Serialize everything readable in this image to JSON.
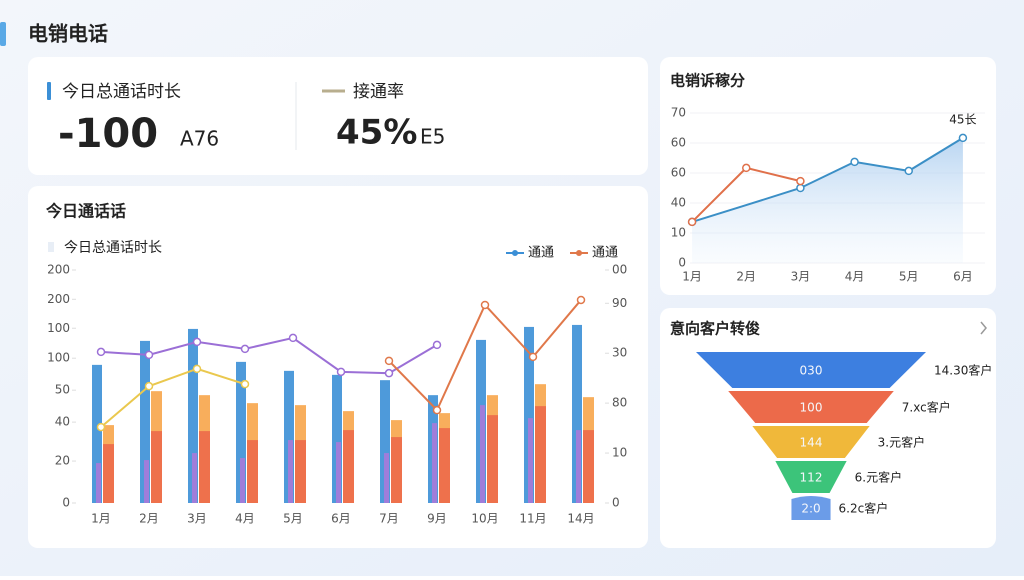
{
  "header": {
    "title": "电销电话"
  },
  "kpis": [
    {
      "label": "今日总通话时长",
      "value": "-100",
      "unit": "A76"
    },
    {
      "label": "接通率",
      "value": "45%",
      "unit": "E5"
    }
  ],
  "chart_data": [
    {
      "type": "bar",
      "title": "今日通话话",
      "subtitle": "今日总通话时长",
      "categories": [
        "1月",
        "2月",
        "3月",
        "4月",
        "5月",
        "6月",
        "7月",
        "9月",
        "10月",
        "11月",
        "14月"
      ],
      "series": [
        {
          "name": "通通",
          "color": "#3b8fd6",
          "values": [
            4.15,
            4.87,
            5.23,
            4.24,
            3.97,
            3.85,
            3.69,
            3.24,
            4.9,
            5.29,
            5.35
          ]
        },
        {
          "color": "#f7a54a",
          "values": [
            2.34,
            3.36,
            3.24,
            3.0,
            2.94,
            2.76,
            2.49,
            2.7,
            3.24,
            3.57,
            3.18
          ]
        },
        {
          "color": "#ec6a4a",
          "values": [
            1.77,
            2.16,
            2.16,
            1.89,
            1.89,
            2.19,
            1.98,
            2.25,
            2.64,
            2.91,
            2.19
          ]
        },
        {
          "color": "#a97ad9",
          "values": [
            1.2,
            1.29,
            1.5,
            1.35,
            1.89,
            1.83,
            1.5,
            2.4,
            2.94,
            2.55,
            2.19
          ]
        },
        {
          "type": "line",
          "color": "#9b6fd6",
          "values": [
            4.54,
            4.45,
            4.84,
            4.63,
            4.96,
            3.94,
            3.9,
            4.75,
            null,
            null,
            null
          ]
        },
        {
          "type": "line",
          "color": "#eac84e",
          "values": [
            2.28,
            3.51,
            4.03,
            3.57,
            null,
            null,
            null,
            null,
            null,
            null,
            null
          ]
        },
        {
          "type": "line",
          "name": "通通",
          "color": "#e0784a",
          "values": [
            null,
            null,
            null,
            null,
            null,
            null,
            4.27,
            2.79,
            5.95,
            4.39,
            6.1
          ]
        }
      ],
      "ylim": [
        0,
        7
      ],
      "yticks": [
        0,
        {
          "value": 1.26,
          "label": "20"
        },
        {
          "value": 2.43,
          "label": "40"
        },
        {
          "value": 3.39,
          "label": "50"
        },
        {
          "value": 4.35,
          "label": "100"
        },
        {
          "value": 5.25,
          "label": "100"
        },
        {
          "value": 6.12,
          "label": "200"
        },
        {
          "value": 7,
          "label": "200"
        }
      ],
      "y2lim": [
        0,
        7
      ],
      "y2ticks": [
        0,
        {
          "value": 1.5,
          "label": "10"
        },
        {
          "value": 3,
          "label": "80"
        },
        {
          "value": 4.5,
          "label": "30"
        },
        {
          "value": 6,
          "label": "90"
        },
        {
          "value": 7,
          "label": "00"
        }
      ]
    },
    {
      "type": "line",
      "title": "电销诉稼分",
      "annotation": "45长",
      "categories": [
        "1月",
        "2月",
        "3月",
        "4月",
        "5月",
        "6月"
      ],
      "series": [
        {
          "color": "#3b8fc6",
          "area": true,
          "values": [
            13.7,
            19.3,
            25,
            33.7,
            30.7,
            41.7
          ]
        },
        {
          "color": "#e0704a",
          "values": [
            13.7,
            31.7,
            27.3,
            null,
            null,
            null
          ]
        }
      ],
      "ylim": [
        0,
        50
      ],
      "yticks": [
        0,
        10,
        {
          "value": 20,
          "label": "40"
        },
        {
          "value": 30,
          "label": "60"
        },
        {
          "value": 40,
          "label": "60"
        },
        {
          "value": 50,
          "label": "70"
        }
      ]
    },
    {
      "type": "funnel",
      "title": "意向客户转俊",
      "labels": [
        "030",
        "100",
        "144",
        "112",
        "2:0"
      ],
      "side_labels": [
        "14.30客户",
        "7.xc客户",
        "3.元客户",
        "6.元客户",
        "6.2c客户"
      ],
      "values": [
        100,
        72,
        51,
        31,
        17
      ],
      "colors": [
        "#3d7fe0",
        "#ec6a4a",
        "#f0b83a",
        "#3cc47a",
        "#6b9ce8"
      ]
    }
  ]
}
